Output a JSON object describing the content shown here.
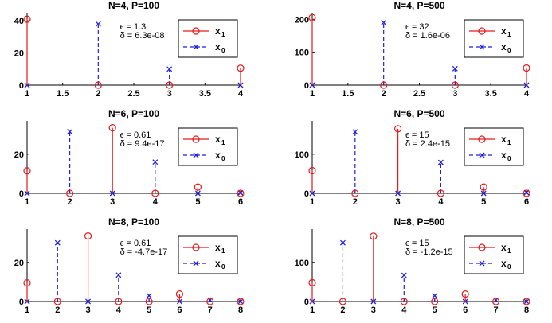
{
  "colors": {
    "x1": "#e41a1c",
    "x0": "#1f1fe0",
    "axis": "#000000",
    "box": "#000000"
  },
  "legend": {
    "x1_main": "x",
    "x1_sub": "1",
    "x0_main": "x",
    "x0_sub": "0"
  },
  "chart_data": [
    {
      "type": "stem",
      "title": "N=4, P=100",
      "xlim": [
        1,
        4
      ],
      "ylim": [
        0,
        45
      ],
      "xticks": [
        "1",
        "1.5",
        "2",
        "2.5",
        "3",
        "3.5",
        "4"
      ],
      "xtick_values": [
        1,
        1.5,
        2,
        2.5,
        3,
        3.5,
        4
      ],
      "yticks": [
        "0",
        "20",
        "40"
      ],
      "ytick_values": [
        0,
        20,
        40
      ],
      "eps_label": "ϵ = 1.3",
      "delta_label": "δ = 6.3e-08",
      "series": [
        {
          "name": "x1",
          "x": [
            1,
            2,
            3,
            4
          ],
          "values": [
            41,
            0,
            0,
            10.5
          ]
        },
        {
          "name": "x0",
          "x": [
            1,
            2,
            3,
            4
          ],
          "values": [
            0,
            38,
            10,
            0
          ]
        }
      ]
    },
    {
      "type": "stem",
      "title": "N=4, P=500",
      "xlim": [
        1,
        4
      ],
      "ylim": [
        0,
        220
      ],
      "xticks": [
        "1",
        "1.5",
        "2",
        "2.5",
        "3",
        "3.5",
        "4"
      ],
      "xtick_values": [
        1,
        1.5,
        2,
        2.5,
        3,
        3.5,
        4
      ],
      "yticks": [
        "0",
        "100",
        "200"
      ],
      "ytick_values": [
        0,
        100,
        200
      ],
      "eps_label": "ϵ = 32",
      "delta_label": "δ = 1.6e-06",
      "series": [
        {
          "name": "x1",
          "x": [
            1,
            2,
            3,
            4
          ],
          "values": [
            205,
            0,
            0,
            52
          ]
        },
        {
          "name": "x0",
          "x": [
            1,
            2,
            3,
            4
          ],
          "values": [
            0,
            190,
            50,
            0
          ]
        }
      ]
    },
    {
      "type": "stem",
      "title": "N=6, P=100",
      "xlim": [
        1,
        6
      ],
      "ylim": [
        0,
        37
      ],
      "xticks": [
        "1",
        "2",
        "3",
        "4",
        "5",
        "6"
      ],
      "xtick_values": [
        1,
        2,
        3,
        4,
        5,
        6
      ],
      "yticks": [
        "0",
        "20"
      ],
      "ytick_values": [
        0,
        20
      ],
      "eps_label": "ϵ = 0.61",
      "delta_label": "δ = 9.4e-17",
      "series": [
        {
          "name": "x1",
          "x": [
            1,
            2,
            3,
            4,
            5,
            6
          ],
          "values": [
            11.5,
            0,
            33.5,
            0,
            3.2,
            0
          ]
        },
        {
          "name": "x0",
          "x": [
            1,
            2,
            3,
            4,
            5,
            6
          ],
          "values": [
            0,
            31.5,
            0,
            16,
            0,
            0.3
          ]
        }
      ]
    },
    {
      "type": "stem",
      "title": "N=6, P=500",
      "xlim": [
        1,
        6
      ],
      "ylim": [
        0,
        185
      ],
      "xticks": [
        "1",
        "2",
        "3",
        "4",
        "5",
        "6"
      ],
      "xtick_values": [
        1,
        2,
        3,
        4,
        5,
        6
      ],
      "yticks": [
        "0",
        "100"
      ],
      "ytick_values": [
        0,
        100
      ],
      "eps_label": "ϵ = 15",
      "delta_label": "δ = 2.4e-15",
      "series": [
        {
          "name": "x1",
          "x": [
            1,
            2,
            3,
            4,
            5,
            6
          ],
          "values": [
            58,
            0,
            165,
            0,
            16,
            0
          ]
        },
        {
          "name": "x0",
          "x": [
            1,
            2,
            3,
            4,
            5,
            6
          ],
          "values": [
            0,
            157,
            0,
            79,
            0,
            2
          ]
        }
      ]
    },
    {
      "type": "stem",
      "title": "N=8, P=100",
      "xlim": [
        1,
        8
      ],
      "ylim": [
        0,
        37
      ],
      "xticks": [
        "1",
        "2",
        "3",
        "4",
        "5",
        "6",
        "7",
        "8"
      ],
      "xtick_values": [
        1,
        2,
        3,
        4,
        5,
        6,
        7,
        8
      ],
      "yticks": [
        "0",
        "20"
      ],
      "ytick_values": [
        0,
        20
      ],
      "eps_label": "ϵ = 0.61",
      "delta_label": "δ = -4.7e-17",
      "series": [
        {
          "name": "x1",
          "x": [
            1,
            2,
            3,
            4,
            5,
            6,
            7,
            8
          ],
          "values": [
            9.5,
            0,
            33.5,
            0,
            0,
            3.8,
            0,
            0
          ]
        },
        {
          "name": "x0",
          "x": [
            1,
            2,
            3,
            4,
            5,
            6,
            7,
            8
          ],
          "values": [
            0,
            30,
            0,
            13.5,
            3,
            0,
            0.8,
            0
          ]
        }
      ]
    },
    {
      "type": "stem",
      "title": "N=8, P=500",
      "xlim": [
        1,
        8
      ],
      "ylim": [
        0,
        185
      ],
      "xticks": [
        "1",
        "2",
        "3",
        "4",
        "5",
        "6",
        "7",
        "8"
      ],
      "xtick_values": [
        1,
        2,
        3,
        4,
        5,
        6,
        7,
        8
      ],
      "yticks": [
        "0",
        "100"
      ],
      "ytick_values": [
        0,
        100
      ],
      "eps_label": "ϵ = 15",
      "delta_label": "δ = -1.2e-15",
      "series": [
        {
          "name": "x1",
          "x": [
            1,
            2,
            3,
            4,
            5,
            6,
            7,
            8
          ],
          "values": [
            48,
            0,
            167,
            0,
            0,
            19,
            0,
            0
          ]
        },
        {
          "name": "x0",
          "x": [
            1,
            2,
            3,
            4,
            5,
            6,
            7,
            8
          ],
          "values": [
            0,
            150,
            0,
            67,
            15,
            0,
            4,
            0
          ]
        }
      ]
    }
  ]
}
